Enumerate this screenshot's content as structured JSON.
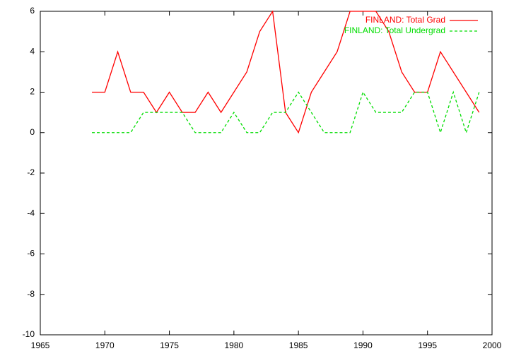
{
  "chart_data": {
    "type": "line",
    "x": [
      1969,
      1970,
      1971,
      1972,
      1973,
      1974,
      1975,
      1976,
      1977,
      1978,
      1979,
      1980,
      1981,
      1982,
      1983,
      1984,
      1985,
      1986,
      1987,
      1988,
      1989,
      1990,
      1991,
      1992,
      1993,
      1994,
      1995,
      1996,
      1997,
      1998,
      1999
    ],
    "series": [
      {
        "name": "FINLAND: Total Grad",
        "color": "#ff0000",
        "line_style": "solid",
        "values": [
          2,
          2,
          4,
          2,
          2,
          1,
          2,
          1,
          1,
          2,
          1,
          2,
          3,
          5,
          6,
          1,
          0,
          2,
          3,
          4,
          6,
          6,
          6,
          5,
          3,
          2,
          2,
          4,
          3,
          2,
          1
        ]
      },
      {
        "name": "FINLAND: Total Undergrad",
        "color": "#00dd00",
        "line_style": "dashed",
        "values": [
          0,
          0,
          0,
          0,
          1,
          1,
          1,
          1,
          0,
          0,
          0,
          1,
          0,
          0,
          1,
          1,
          2,
          1,
          0,
          0,
          0,
          2,
          1,
          1,
          1,
          2,
          2,
          0,
          2,
          0,
          2
        ]
      }
    ],
    "xlim": [
      1965,
      2000
    ],
    "xticks": [
      1965,
      1970,
      1975,
      1980,
      1985,
      1990,
      1995,
      2000
    ],
    "ylim": [
      -10,
      6
    ],
    "yticks": [
      -10,
      -8,
      -6,
      -4,
      -2,
      0,
      2,
      4,
      6
    ],
    "grid": false,
    "legend": "top-right"
  }
}
